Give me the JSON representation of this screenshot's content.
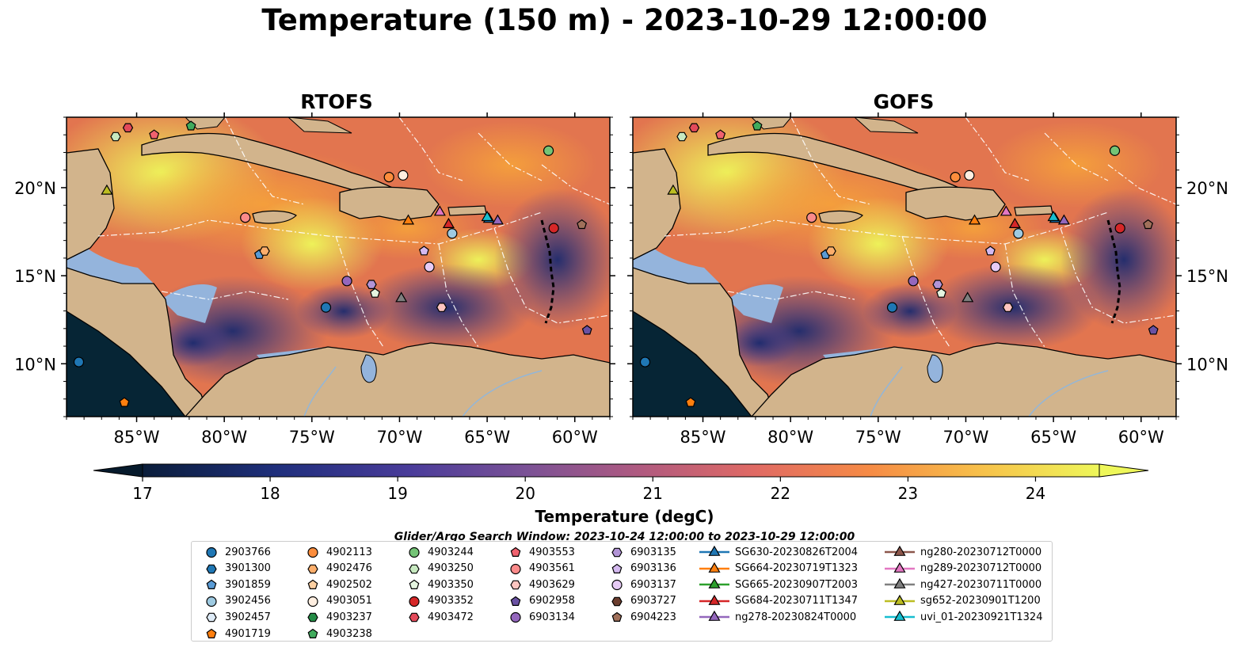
{
  "title": "Temperature (150 m) - 2023-10-29 12:00:00",
  "panels": [
    {
      "title": "RTOFS"
    },
    {
      "title": "GOFS"
    }
  ],
  "axes": {
    "x_ticks": [
      "85°W",
      "80°W",
      "75°W",
      "70°W",
      "65°W",
      "60°W"
    ],
    "y_ticks": [
      "20°N",
      "15°N",
      "10°N"
    ],
    "x_tick_values": [
      -85,
      -80,
      -75,
      -70,
      -65,
      -60
    ],
    "y_tick_values": [
      20,
      15,
      10
    ],
    "lon_range": [
      -89,
      -58
    ],
    "lat_range": [
      7,
      24
    ]
  },
  "colorbar": {
    "label": "Temperature (degC)",
    "ticks": [
      "17",
      "18",
      "19",
      "20",
      "21",
      "22",
      "23",
      "24"
    ],
    "range": [
      17,
      24.5
    ],
    "extend": "both"
  },
  "colors": {
    "ocean_shelf": "#94b4dc",
    "land": "#d2b48c",
    "deep_ocean": "#062535",
    "warm": "#eef75a",
    "cool": "#2a2e87"
  },
  "search_window": "Glider/Argo Search Window: 2023-10-24 12:00:00 to 2023-10-29 12:00:00",
  "legend": [
    {
      "label": "2903766",
      "marker": "circle",
      "color": "#1f77b4"
    },
    {
      "label": "3901300",
      "marker": "hexagon",
      "color": "#1f77b4"
    },
    {
      "label": "3901859",
      "marker": "pentagon",
      "color": "#5a9bd5"
    },
    {
      "label": "3902456",
      "marker": "circle",
      "color": "#9ecae1"
    },
    {
      "label": "3902457",
      "marker": "hexagon",
      "color": "#deebf7"
    },
    {
      "label": "4901719",
      "marker": "pentagon",
      "color": "#ff7f0e"
    },
    {
      "label": "4902113",
      "marker": "circle",
      "color": "#fd8d3c"
    },
    {
      "label": "4902476",
      "marker": "hexagon",
      "color": "#fdae6b"
    },
    {
      "label": "4902502",
      "marker": "pentagon",
      "color": "#fdd0a2"
    },
    {
      "label": "4903051",
      "marker": "circle",
      "color": "#feeee0"
    },
    {
      "label": "4903237",
      "marker": "hexagon",
      "color": "#238b45"
    },
    {
      "label": "4903238",
      "marker": "pentagon",
      "color": "#41ab5d"
    },
    {
      "label": "4903244",
      "marker": "circle",
      "color": "#74c476"
    },
    {
      "label": "4903250",
      "marker": "hexagon",
      "color": "#c7e9c0"
    },
    {
      "label": "4903350",
      "marker": "pentagon",
      "color": "#e5f5e0"
    },
    {
      "label": "4903352",
      "marker": "circle",
      "color": "#d62728"
    },
    {
      "label": "4903472",
      "marker": "hexagon",
      "color": "#e34a5a"
    },
    {
      "label": "4903553",
      "marker": "pentagon",
      "color": "#f0616e"
    },
    {
      "label": "4903561",
      "marker": "circle",
      "color": "#fb8a8a"
    },
    {
      "label": "4903629",
      "marker": "hexagon",
      "color": "#fcc5c0"
    },
    {
      "label": "6902958",
      "marker": "pentagon",
      "color": "#6a51a3"
    },
    {
      "label": "6903134",
      "marker": "circle",
      "color": "#9467bd"
    },
    {
      "label": "6903135",
      "marker": "hexagon",
      "color": "#b294d6"
    },
    {
      "label": "6903136",
      "marker": "pentagon",
      "color": "#d4b9f0"
    },
    {
      "label": "6903137",
      "marker": "circle",
      "color": "#e7cbf5"
    },
    {
      "label": "6903727",
      "marker": "hexagon",
      "color": "#6b3d2e"
    },
    {
      "label": "6904223",
      "marker": "pentagon",
      "color": "#a0705a"
    },
    {
      "label": "SG630-20230826T2004",
      "marker": "triangle-line",
      "color": "#1f77b4"
    },
    {
      "label": "SG664-20230719T1323",
      "marker": "triangle-line",
      "color": "#ff7f0e"
    },
    {
      "label": "SG665-20230907T2003",
      "marker": "triangle-line",
      "color": "#2ca02c"
    },
    {
      "label": "SG684-20230711T1347",
      "marker": "triangle-line",
      "color": "#d62728"
    },
    {
      "label": "ng278-20230824T0000",
      "marker": "triangle-line",
      "color": "#9467bd"
    },
    {
      "label": "ng280-20230712T0000",
      "marker": "triangle-line",
      "color": "#8c564b"
    },
    {
      "label": "ng289-20230712T0000",
      "marker": "triangle-line",
      "color": "#e377c2"
    },
    {
      "label": "ng427-20230711T0000",
      "marker": "triangle-line",
      "color": "#7f7f7f"
    },
    {
      "label": "sg652-20230901T1200",
      "marker": "triangle-line",
      "color": "#bcbd22"
    },
    {
      "label": "uvi_01-20230921T1324",
      "marker": "triangle-line",
      "color": "#17becf"
    }
  ],
  "platforms": [
    {
      "id": "2903766",
      "lon": -88.3,
      "lat": 10.1
    },
    {
      "id": "4901719",
      "lon": -85.7,
      "lat": 7.8
    },
    {
      "id": "4903472",
      "lon": -85.5,
      "lat": 23.4
    },
    {
      "id": "4903250",
      "lon": -86.2,
      "lat": 22.9
    },
    {
      "id": "4903553",
      "lon": -84.0,
      "lat": 23.0
    },
    {
      "id": "4903238",
      "lon": -81.9,
      "lat": 23.5
    },
    {
      "id": "sg652-20230901T1200",
      "lon": -86.7,
      "lat": 19.8
    },
    {
      "id": "4903244",
      "lon": -61.5,
      "lat": 22.1
    },
    {
      "id": "4902113",
      "lon": -70.6,
      "lat": 20.6
    },
    {
      "id": "4903051",
      "lon": -69.8,
      "lat": 20.7
    },
    {
      "id": "4903561",
      "lon": -78.8,
      "lat": 18.3
    },
    {
      "id": "SG664-20230719T1323",
      "lon": -69.5,
      "lat": 18.1
    },
    {
      "id": "ng289-20230712T0000",
      "lon": -67.7,
      "lat": 18.6
    },
    {
      "id": "SG684-20230711T1347",
      "lon": -67.2,
      "lat": 17.9
    },
    {
      "id": "3902456",
      "lon": -67.0,
      "lat": 17.4
    },
    {
      "id": "SG630-20230826T2004",
      "lon": -64.9,
      "lat": 18.2
    },
    {
      "id": "uvi_01-20230921T1324",
      "lon": -65.0,
      "lat": 18.3
    },
    {
      "id": "ng278-20230824T0000",
      "lon": -64.4,
      "lat": 18.1
    },
    {
      "id": "4903352",
      "lon": -61.2,
      "lat": 17.7
    },
    {
      "id": "6904223",
      "lon": -59.6,
      "lat": 17.9
    },
    {
      "id": "3901859",
      "lon": -78.0,
      "lat": 16.2
    },
    {
      "id": "4902476",
      "lon": -77.7,
      "lat": 16.4
    },
    {
      "id": "6903136",
      "lon": -68.6,
      "lat": 16.4
    },
    {
      "id": "6903137",
      "lon": -68.3,
      "lat": 15.5
    },
    {
      "id": "6903134",
      "lon": -73.0,
      "lat": 14.7
    },
    {
      "id": "6903135",
      "lon": -71.6,
      "lat": 14.5
    },
    {
      "id": "4903350",
      "lon": -71.4,
      "lat": 14.0
    },
    {
      "id": "ng427-20230711T0000",
      "lon": -69.9,
      "lat": 13.7
    },
    {
      "id": "4903629",
      "lon": -67.6,
      "lat": 13.2
    },
    {
      "id": "2903766b",
      "lon": -74.2,
      "lat": 13.2
    },
    {
      "id": "6902958",
      "lon": -59.3,
      "lat": 11.9
    }
  ]
}
